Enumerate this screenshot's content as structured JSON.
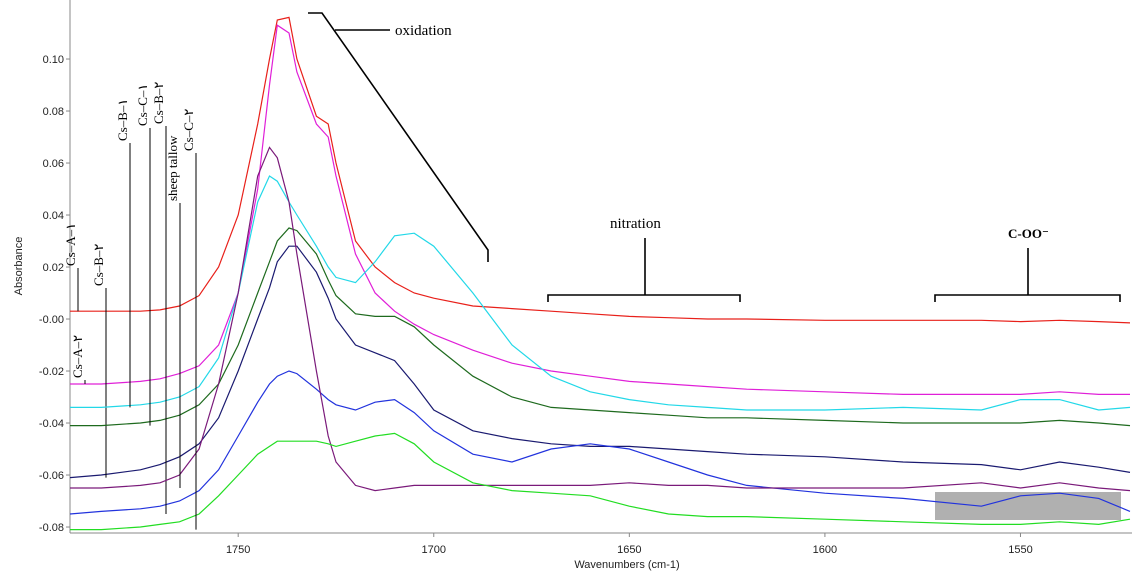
{
  "chart_data": {
    "type": "line",
    "ylabel": "Absorbance",
    "xlabel": "Wavenumbers (cm-1)",
    "annotations": [
      "oxidation",
      "nitration",
      "C-OO⁻"
    ],
    "xlim": [
      1793,
      1522
    ],
    "ylim": [
      -0.0823,
      0.1227
    ],
    "xticks": [
      1750,
      1700,
      1650,
      1600,
      1550
    ],
    "yticks": [
      {
        "value": 0.1,
        "label": "0.10"
      },
      {
        "value": 0.08,
        "label": "0.08"
      },
      {
        "value": 0.06,
        "label": "0.06"
      },
      {
        "value": 0.04,
        "label": "0.04"
      },
      {
        "value": 0.02,
        "label": "0.02"
      },
      {
        "value": 0,
        "label": "-0.00"
      },
      {
        "value": -0.02,
        "label": "-0.02"
      },
      {
        "value": -0.04,
        "label": "-0.04"
      },
      {
        "value": -0.06,
        "label": "-0.06"
      },
      {
        "value": -0.08,
        "label": "-0.08"
      }
    ],
    "x": [
      1793,
      1785,
      1775,
      1770,
      1765,
      1760,
      1755,
      1750,
      1745,
      1742,
      1740,
      1737,
      1735,
      1730,
      1727,
      1725,
      1720,
      1715,
      1710,
      1705,
      1700,
      1690,
      1680,
      1670,
      1660,
      1650,
      1640,
      1630,
      1620,
      1600,
      1580,
      1560,
      1550,
      1540,
      1530,
      1522
    ],
    "series": [
      {
        "name": "Cs–A–۱",
        "color": "#e8201a",
        "values": [
          0.003,
          0.003,
          0.003,
          0.0035,
          0.005,
          0.009,
          0.02,
          0.04,
          0.075,
          0.1,
          0.115,
          0.116,
          0.1,
          0.078,
          0.075,
          0.06,
          0.03,
          0.02,
          0.014,
          0.01,
          0.008,
          0.005,
          0.004,
          0.003,
          0.002,
          0.001,
          0.0005,
          0,
          0,
          -0.0005,
          -0.0005,
          -0.0005,
          -0.001,
          -0.0005,
          -0.001,
          -0.0015
        ]
      },
      {
        "name": "Cs–A–۲",
        "color": "#e020d8",
        "values": [
          -0.025,
          -0.025,
          -0.024,
          -0.023,
          -0.021,
          -0.018,
          -0.01,
          0.01,
          0.05,
          0.09,
          0.113,
          0.11,
          0.095,
          0.075,
          0.07,
          0.055,
          0.025,
          0.01,
          0.003,
          -0.002,
          -0.006,
          -0.012,
          -0.017,
          -0.02,
          -0.022,
          -0.024,
          -0.025,
          -0.026,
          -0.027,
          -0.028,
          -0.029,
          -0.029,
          -0.029,
          -0.028,
          -0.029,
          -0.029
        ]
      },
      {
        "name": "Cs–B–۲",
        "color": "#1a1a70",
        "values": [
          -0.061,
          -0.06,
          -0.058,
          -0.056,
          -0.053,
          -0.048,
          -0.038,
          -0.02,
          0.0,
          0.012,
          0.022,
          0.028,
          0.028,
          0.018,
          0.008,
          0.0,
          -0.01,
          -0.013,
          -0.016,
          -0.025,
          -0.035,
          -0.043,
          -0.046,
          -0.048,
          -0.049,
          -0.049,
          -0.05,
          -0.051,
          -0.052,
          -0.053,
          -0.055,
          -0.056,
          -0.058,
          -0.055,
          -0.057,
          -0.059
        ]
      },
      {
        "name": "Cs–B–۱",
        "color": "#22d8e8",
        "values": [
          -0.034,
          -0.034,
          -0.033,
          -0.032,
          -0.03,
          -0.026,
          -0.015,
          0.01,
          0.045,
          0.055,
          0.053,
          0.045,
          0.04,
          0.028,
          0.02,
          0.016,
          0.014,
          0.022,
          0.032,
          0.033,
          0.028,
          0.01,
          -0.01,
          -0.022,
          -0.028,
          -0.031,
          -0.033,
          -0.034,
          -0.035,
          -0.035,
          -0.034,
          -0.035,
          -0.031,
          -0.031,
          -0.035,
          -0.034
        ]
      },
      {
        "name": "Cs–C–۱",
        "color": "#1e6a1e",
        "values": [
          -0.041,
          -0.041,
          -0.04,
          -0.039,
          -0.037,
          -0.033,
          -0.025,
          -0.01,
          0.01,
          0.022,
          0.03,
          0.035,
          0.034,
          0.025,
          0.015,
          0.009,
          0.002,
          0.001,
          0.001,
          -0.003,
          -0.01,
          -0.022,
          -0.03,
          -0.034,
          -0.035,
          -0.036,
          -0.037,
          -0.038,
          -0.038,
          -0.039,
          -0.04,
          -0.04,
          -0.04,
          -0.039,
          -0.04,
          -0.041
        ]
      },
      {
        "name": "Cs–B–۲",
        "color": "#2233dd",
        "values": [
          -0.075,
          -0.074,
          -0.073,
          -0.072,
          -0.07,
          -0.066,
          -0.058,
          -0.045,
          -0.032,
          -0.025,
          -0.022,
          -0.02,
          -0.021,
          -0.027,
          -0.031,
          -0.033,
          -0.035,
          -0.032,
          -0.031,
          -0.036,
          -0.043,
          -0.052,
          -0.055,
          -0.05,
          -0.048,
          -0.05,
          -0.055,
          -0.06,
          -0.064,
          -0.067,
          -0.069,
          -0.072,
          -0.068,
          -0.067,
          -0.069,
          -0.074
        ]
      },
      {
        "name": "sheep tallow",
        "color": "#7a1a7a",
        "values": [
          -0.065,
          -0.065,
          -0.064,
          -0.063,
          -0.06,
          -0.05,
          -0.025,
          0.01,
          0.055,
          0.066,
          0.062,
          0.045,
          0.025,
          -0.02,
          -0.045,
          -0.055,
          -0.064,
          -0.066,
          -0.065,
          -0.064,
          -0.064,
          -0.064,
          -0.064,
          -0.064,
          -0.064,
          -0.063,
          -0.064,
          -0.064,
          -0.065,
          -0.065,
          -0.065,
          -0.063,
          -0.065,
          -0.063,
          -0.065,
          -0.066
        ]
      },
      {
        "name": "Cs–C–۲",
        "color": "#22dd22",
        "values": [
          -0.081,
          -0.081,
          -0.08,
          -0.079,
          -0.078,
          -0.075,
          -0.068,
          -0.06,
          -0.052,
          -0.049,
          -0.047,
          -0.047,
          -0.047,
          -0.047,
          -0.048,
          -0.049,
          -0.047,
          -0.045,
          -0.044,
          -0.048,
          -0.055,
          -0.063,
          -0.066,
          -0.067,
          -0.068,
          -0.072,
          -0.075,
          -0.076,
          -0.076,
          -0.077,
          -0.078,
          -0.079,
          -0.079,
          -0.078,
          -0.079,
          -0.077
        ]
      }
    ]
  }
}
